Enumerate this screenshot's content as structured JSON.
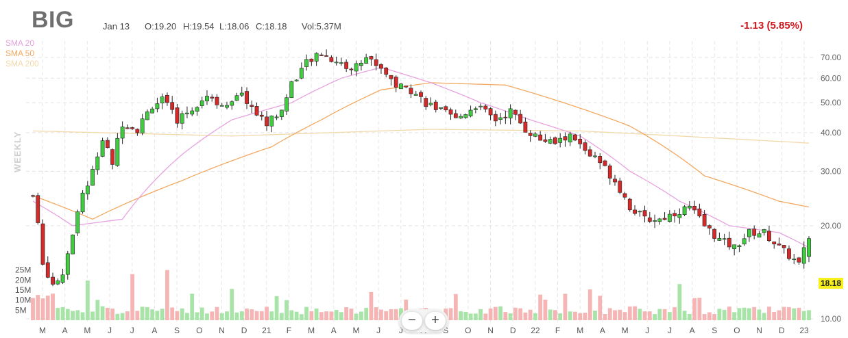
{
  "header": {
    "ticker": "BIG",
    "date": "Jan 13",
    "open": "O:19.20",
    "high": "H:19.54",
    "low": "L:18.06",
    "close": "C:18.18",
    "volume": "Vol:5.37M",
    "change": "-1.13 (5.85%)"
  },
  "side_label": "WEEKLY",
  "last_price": "18.18",
  "zoom": {
    "minus": "−",
    "plus": "+"
  },
  "colors": {
    "up": "#3fcc3f",
    "down": "#d42a2a",
    "vol_up": "#a8e3a8",
    "vol_down": "#f5b5b5",
    "sma20": "#e7a3e0",
    "sma50": "#f3a860",
    "sma200": "#f2d9a9",
    "change": "#d0141b"
  },
  "chart_data": {
    "type": "candlestick",
    "timeframe": "weekly",
    "y_axis": {
      "ticks": [
        "70.00",
        "60.00",
        "50.00",
        "40.00",
        "30.00",
        "20.00",
        "10.00"
      ],
      "range": [
        10,
        72
      ],
      "scale": "log"
    },
    "volume_axis": {
      "ticks": [
        "25M",
        "20M",
        "15M",
        "10M",
        "5M"
      ],
      "range": [
        0,
        30
      ]
    },
    "x_axis": {
      "ticks": [
        "M",
        "A",
        "M",
        "J",
        "J",
        "A",
        "S",
        "O",
        "N",
        "D",
        "21",
        "F",
        "M",
        "A",
        "M",
        "J",
        "J",
        "A",
        "S",
        "O",
        "N",
        "D",
        "22",
        "F",
        "M",
        "A",
        "M",
        "J",
        "J",
        "A",
        "S",
        "O",
        "N",
        "D",
        "23"
      ]
    },
    "legend": [
      {
        "name": "SMA 20",
        "color": "#e7a3e0"
      },
      {
        "name": "SMA 50",
        "color": "#f3a860"
      },
      {
        "name": "SMA 200",
        "color": "#f2d9a9"
      }
    ],
    "price_keypoints": [
      [
        0,
        25
      ],
      [
        2,
        15
      ],
      [
        4,
        13
      ],
      [
        6,
        14
      ],
      [
        8,
        19
      ],
      [
        10,
        25
      ],
      [
        12,
        30
      ],
      [
        14,
        38
      ],
      [
        16,
        32
      ],
      [
        18,
        43
      ],
      [
        21,
        41
      ],
      [
        24,
        49
      ],
      [
        26,
        51
      ],
      [
        29,
        44
      ],
      [
        32,
        48
      ],
      [
        35,
        53
      ],
      [
        39,
        48
      ],
      [
        42,
        53
      ],
      [
        45,
        46
      ],
      [
        47,
        43
      ],
      [
        50,
        47
      ],
      [
        52,
        58
      ],
      [
        55,
        67
      ],
      [
        58,
        72
      ],
      [
        61,
        68
      ],
      [
        64,
        64
      ],
      [
        67,
        70
      ],
      [
        70,
        65
      ],
      [
        73,
        57
      ],
      [
        76,
        55
      ],
      [
        79,
        50
      ],
      [
        82,
        47
      ],
      [
        85,
        44
      ],
      [
        89,
        49
      ],
      [
        93,
        44
      ],
      [
        96,
        47
      ],
      [
        99,
        41
      ],
      [
        102,
        38
      ],
      [
        105,
        37
      ],
      [
        108,
        39
      ],
      [
        111,
        35
      ],
      [
        114,
        32
      ],
      [
        117,
        28
      ],
      [
        120,
        23
      ],
      [
        123,
        21
      ],
      [
        126,
        21
      ],
      [
        129,
        22
      ],
      [
        132,
        23
      ],
      [
        135,
        20
      ],
      [
        138,
        18
      ],
      [
        141,
        17
      ],
      [
        144,
        19
      ],
      [
        147,
        19
      ],
      [
        150,
        17
      ],
      [
        152,
        16
      ],
      [
        154,
        15
      ],
      [
        156,
        18.18
      ]
    ],
    "sma20_keypoints": [
      [
        0,
        24
      ],
      [
        8,
        20
      ],
      [
        18,
        21
      ],
      [
        30,
        34
      ],
      [
        40,
        44
      ],
      [
        52,
        50
      ],
      [
        62,
        60
      ],
      [
        70,
        65
      ],
      [
        80,
        58
      ],
      [
        90,
        50
      ],
      [
        100,
        44
      ],
      [
        110,
        39
      ],
      [
        120,
        30
      ],
      [
        130,
        24
      ],
      [
        140,
        20
      ],
      [
        150,
        19
      ],
      [
        156,
        17
      ]
    ],
    "sma50_keypoints": [
      [
        0,
        25
      ],
      [
        12,
        21
      ],
      [
        30,
        28
      ],
      [
        48,
        36
      ],
      [
        58,
        44
      ],
      [
        70,
        55
      ],
      [
        80,
        58
      ],
      [
        95,
        57
      ],
      [
        105,
        51
      ],
      [
        120,
        42
      ],
      [
        135,
        29
      ],
      [
        150,
        24
      ],
      [
        156,
        23
      ]
    ],
    "sma200_keypoints": [
      [
        0,
        40.5
      ],
      [
        40,
        39
      ],
      [
        80,
        41
      ],
      [
        110,
        40.5
      ],
      [
        130,
        39
      ],
      [
        156,
        37
      ]
    ],
    "candles": 157,
    "last": 18.18,
    "change": -1.13,
    "change_pct": 5.85
  }
}
